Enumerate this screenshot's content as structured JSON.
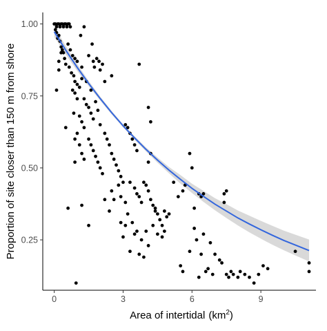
{
  "chart_data": {
    "type": "scatter",
    "title": "",
    "xlabel": "Area of intertidal",
    "xlabel_unit": "km",
    "xlabel_unit_exponent": "2",
    "ylabel": "Proportion of site closer than 150 m from shore",
    "xlim": [
      -0.5,
      11.4
    ],
    "ylim": [
      0.075,
      1.04
    ],
    "x_ticks": [
      0,
      3,
      6,
      9
    ],
    "x_tick_labels": [
      "0",
      "3",
      "6",
      "9"
    ],
    "y_ticks": [
      0.25,
      0.5,
      0.75,
      1.0
    ],
    "y_tick_labels": [
      "0.25",
      "0.50",
      "0.75",
      "1.00"
    ],
    "grid": false,
    "legend": "none",
    "colors": {
      "points": "#000000",
      "fit_line": "#3366dd",
      "confidence_band": "#cccccc"
    },
    "points": [
      [
        0.0,
        1.0
      ],
      [
        0.05,
        1.0
      ],
      [
        0.1,
        0.99
      ],
      [
        0.15,
        1.0
      ],
      [
        0.2,
        1.0
      ],
      [
        0.25,
        0.99
      ],
      [
        0.3,
        1.0
      ],
      [
        0.35,
        1.0
      ],
      [
        0.4,
        0.99
      ],
      [
        0.45,
        1.0
      ],
      [
        0.5,
        1.0
      ],
      [
        0.55,
        0.99
      ],
      [
        0.6,
        1.0
      ],
      [
        0.65,
        1.0
      ],
      [
        0.7,
        0.99
      ],
      [
        0.05,
        0.98
      ],
      [
        0.1,
        0.97
      ],
      [
        0.2,
        0.96
      ],
      [
        0.15,
        0.95
      ],
      [
        0.25,
        0.94
      ],
      [
        0.3,
        0.92
      ],
      [
        0.35,
        0.91
      ],
      [
        0.4,
        0.9
      ],
      [
        0.45,
        0.88
      ],
      [
        0.5,
        0.86
      ],
      [
        0.2,
        0.87
      ],
      [
        0.1,
        0.77
      ],
      [
        0.2,
        0.84
      ],
      [
        0.3,
        0.9
      ],
      [
        0.6,
        0.93
      ],
      [
        0.7,
        0.91
      ],
      [
        0.8,
        0.89
      ],
      [
        0.9,
        0.88
      ],
      [
        1.0,
        0.87
      ],
      [
        1.2,
        0.85
      ],
      [
        1.3,
        0.99
      ],
      [
        1.15,
        0.96
      ],
      [
        0.65,
        0.85
      ],
      [
        0.75,
        0.83
      ],
      [
        0.85,
        0.82
      ],
      [
        0.9,
        0.8
      ],
      [
        1.0,
        0.79
      ],
      [
        1.1,
        0.78
      ],
      [
        0.8,
        0.77
      ],
      [
        0.9,
        0.76
      ],
      [
        1.0,
        0.74
      ],
      [
        1.2,
        0.81
      ],
      [
        1.4,
        0.8
      ],
      [
        1.5,
        0.89
      ],
      [
        1.65,
        0.93
      ],
      [
        1.7,
        0.87
      ],
      [
        1.85,
        0.88
      ],
      [
        1.95,
        0.87
      ],
      [
        2.0,
        0.84
      ],
      [
        2.2,
        0.8
      ],
      [
        2.5,
        0.82
      ],
      [
        2.1,
        0.86
      ],
      [
        1.75,
        0.85
      ],
      [
        1.6,
        0.77
      ],
      [
        1.3,
        0.74
      ],
      [
        1.4,
        0.72
      ],
      [
        1.5,
        0.71
      ],
      [
        1.6,
        0.69
      ],
      [
        1.7,
        0.67
      ],
      [
        1.8,
        0.73
      ],
      [
        1.9,
        0.7
      ],
      [
        2.0,
        0.65
      ],
      [
        1.1,
        0.68
      ],
      [
        1.2,
        0.66
      ],
      [
        1.3,
        0.64
      ],
      [
        1.0,
        0.62
      ],
      [
        0.9,
        0.6
      ],
      [
        1.1,
        0.58
      ],
      [
        1.2,
        0.55
      ],
      [
        1.3,
        0.53
      ],
      [
        0.85,
        0.69
      ],
      [
        1.5,
        0.6
      ],
      [
        1.6,
        0.58
      ],
      [
        1.7,
        0.56
      ],
      [
        1.8,
        0.54
      ],
      [
        1.9,
        0.52
      ],
      [
        2.0,
        0.5
      ],
      [
        2.1,
        0.48
      ],
      [
        2.2,
        0.62
      ],
      [
        2.3,
        0.6
      ],
      [
        2.4,
        0.58
      ],
      [
        2.5,
        0.55
      ],
      [
        2.6,
        0.53
      ],
      [
        2.7,
        0.51
      ],
      [
        2.8,
        0.49
      ],
      [
        2.9,
        0.47
      ],
      [
        3.0,
        0.45
      ],
      [
        3.1,
        0.65
      ],
      [
        3.2,
        0.64
      ],
      [
        3.3,
        0.62
      ],
      [
        3.4,
        0.6
      ],
      [
        3.5,
        0.58
      ],
      [
        3.6,
        0.56
      ],
      [
        3.7,
        0.86
      ],
      [
        4.1,
        0.71
      ],
      [
        4.2,
        0.66
      ],
      [
        0.5,
        0.64
      ],
      [
        0.6,
        0.36
      ],
      [
        0.9,
        0.52
      ],
      [
        1.2,
        0.37
      ],
      [
        1.5,
        0.3
      ],
      [
        0.95,
        0.1
      ],
      [
        2.2,
        0.39
      ],
      [
        2.4,
        0.35
      ],
      [
        2.5,
        0.42
      ],
      [
        2.6,
        0.39
      ],
      [
        2.8,
        0.44
      ],
      [
        2.9,
        0.4
      ],
      [
        3.1,
        0.38
      ],
      [
        3.2,
        0.34
      ],
      [
        3.3,
        0.45
      ],
      [
        3.5,
        0.43
      ],
      [
        3.6,
        0.41
      ],
      [
        3.7,
        0.4
      ],
      [
        3.8,
        0.38
      ],
      [
        3.9,
        0.45
      ],
      [
        4.0,
        0.44
      ],
      [
        4.1,
        0.42
      ],
      [
        4.2,
        0.39
      ],
      [
        4.3,
        0.37
      ],
      [
        4.4,
        0.35
      ],
      [
        4.5,
        0.34
      ],
      [
        4.6,
        0.32
      ],
      [
        4.7,
        0.3
      ],
      [
        4.8,
        0.28
      ],
      [
        3.0,
        0.26
      ],
      [
        3.4,
        0.31
      ],
      [
        3.6,
        0.28
      ],
      [
        3.8,
        0.25
      ],
      [
        4.0,
        0.28
      ],
      [
        4.1,
        0.23
      ],
      [
        4.3,
        0.3
      ],
      [
        4.5,
        0.27
      ],
      [
        4.7,
        0.26
      ],
      [
        4.8,
        0.35
      ],
      [
        5.0,
        0.34
      ],
      [
        4.1,
        0.52
      ],
      [
        4.2,
        0.55
      ],
      [
        5.2,
        0.45
      ],
      [
        5.4,
        0.4
      ],
      [
        5.6,
        0.42
      ],
      [
        5.7,
        0.44
      ],
      [
        5.9,
        0.55
      ],
      [
        6.0,
        0.5
      ],
      [
        6.1,
        0.36
      ],
      [
        6.3,
        0.41
      ],
      [
        6.4,
        0.4
      ],
      [
        6.5,
        0.41
      ],
      [
        7.4,
        0.41
      ],
      [
        7.5,
        0.42
      ],
      [
        7.4,
        0.38
      ],
      [
        5.5,
        0.16
      ],
      [
        5.6,
        0.14
      ],
      [
        5.9,
        0.21
      ],
      [
        6.1,
        0.29
      ],
      [
        6.2,
        0.25
      ],
      [
        6.3,
        0.12
      ],
      [
        6.4,
        0.2
      ],
      [
        6.5,
        0.27
      ],
      [
        6.6,
        0.14
      ],
      [
        6.7,
        0.15
      ],
      [
        6.8,
        0.24
      ],
      [
        6.9,
        0.13
      ],
      [
        7.0,
        0.2
      ],
      [
        7.2,
        0.18
      ],
      [
        7.3,
        0.17
      ],
      [
        7.5,
        0.13
      ],
      [
        7.6,
        0.12
      ],
      [
        7.7,
        0.14
      ],
      [
        7.8,
        0.13
      ],
      [
        8.0,
        0.12
      ],
      [
        8.1,
        0.14
      ],
      [
        8.3,
        0.13
      ],
      [
        8.5,
        0.12
      ],
      [
        8.7,
        0.1
      ],
      [
        8.9,
        0.13
      ],
      [
        9.1,
        0.16
      ],
      [
        9.3,
        0.15
      ],
      [
        4.4,
        0.36
      ],
      [
        4.9,
        0.33
      ],
      [
        2.9,
        0.31
      ],
      [
        3.1,
        0.3
      ],
      [
        3.3,
        0.21
      ],
      [
        3.5,
        0.27
      ],
      [
        3.7,
        0.2
      ],
      [
        3.9,
        0.19
      ],
      [
        10.5,
        0.21
      ],
      [
        11.1,
        0.17
      ],
      [
        11.1,
        0.14
      ]
    ],
    "fit": {
      "x": [
        0,
        0.5,
        1,
        1.5,
        2,
        2.5,
        3,
        3.5,
        4,
        4.5,
        5,
        5.5,
        6,
        6.5,
        7,
        7.5,
        8,
        8.5,
        9,
        9.5,
        10,
        10.5,
        11.1
      ],
      "y": [
        0.973,
        0.909,
        0.849,
        0.793,
        0.741,
        0.692,
        0.646,
        0.604,
        0.564,
        0.527,
        0.492,
        0.46,
        0.429,
        0.401,
        0.374,
        0.35,
        0.326,
        0.305,
        0.285,
        0.266,
        0.248,
        0.232,
        0.213
      ],
      "lower": [
        0.955,
        0.894,
        0.837,
        0.784,
        0.734,
        0.686,
        0.641,
        0.598,
        0.557,
        0.518,
        0.481,
        0.445,
        0.413,
        0.382,
        0.353,
        0.326,
        0.3,
        0.276,
        0.254,
        0.233,
        0.214,
        0.196,
        0.175
      ],
      "upper": [
        0.991,
        0.924,
        0.861,
        0.802,
        0.748,
        0.698,
        0.651,
        0.61,
        0.571,
        0.536,
        0.503,
        0.475,
        0.445,
        0.42,
        0.395,
        0.374,
        0.352,
        0.334,
        0.316,
        0.299,
        0.282,
        0.268,
        0.251
      ]
    }
  }
}
